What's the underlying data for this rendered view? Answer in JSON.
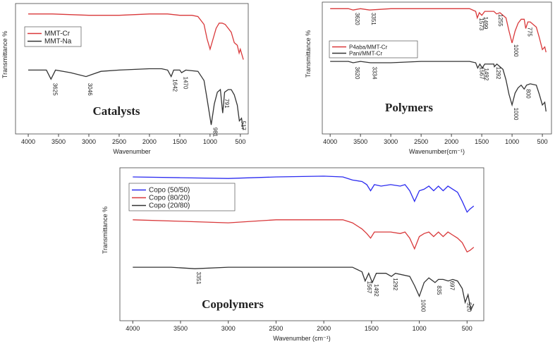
{
  "chart_data": [
    {
      "type": "line",
      "title": "Catalysts",
      "x_label": "Wavenumber",
      "y_label": "Transmittance %",
      "legend": "upper left",
      "xlim": [
        4210,
        370
      ],
      "ylim": [
        0,
        100
      ],
      "xticks": [
        4000,
        3500,
        3000,
        2500,
        2000,
        1500,
        1000,
        500
      ],
      "series": [
        {
          "name": "MMT-Cr",
          "color": "#d9383a",
          "x": [
            4000,
            3600,
            3000,
            2500,
            2000,
            1700,
            1500,
            1300,
            1200,
            1100,
            1050,
            1000,
            950,
            900,
            850,
            800,
            750,
            700,
            650,
            600,
            550,
            520,
            500,
            450
          ],
          "values": [
            92,
            92,
            91,
            91,
            92,
            92,
            91,
            91,
            90,
            84,
            73,
            65,
            73,
            81,
            85,
            85,
            84,
            81,
            78,
            70,
            68,
            62,
            65,
            57
          ]
        },
        {
          "name": "MMT-Na",
          "color": "#333333",
          "x": [
            4000,
            3700,
            3625,
            3550,
            3300,
            3046,
            2800,
            2500,
            2000,
            1800,
            1700,
            1642,
            1600,
            1500,
            1470,
            1400,
            1200,
            1100,
            1050,
            981,
            930,
            880,
            830,
            791,
            760,
            700,
            650,
            600,
            550,
            517,
            480,
            450
          ],
          "values": [
            49,
            49,
            42,
            49,
            47,
            44,
            48,
            49,
            50,
            50,
            49,
            44,
            49,
            49,
            47,
            49,
            48,
            41,
            27,
            7,
            23,
            32,
            34,
            16,
            32,
            34,
            34,
            30,
            22,
            10,
            12,
            3
          ]
        }
      ],
      "annotations": [
        {
          "text": "3625",
          "x": 3625,
          "y": 39
        },
        {
          "text": "3046",
          "x": 3046,
          "y": 39
        },
        {
          "text": "1642",
          "x": 1642,
          "y": 42
        },
        {
          "text": "1470",
          "x": 1470,
          "y": 44
        },
        {
          "text": "981",
          "x": 981,
          "y": 5
        },
        {
          "text": "791",
          "x": 791,
          "y": 27
        },
        {
          "text": "517",
          "x": 517,
          "y": 10
        }
      ]
    },
    {
      "type": "line",
      "title": "Polymers",
      "x_label": "Wavenumber(cm⁻¹)",
      "y_label": "Transmittance %",
      "legend": "upper left",
      "xlim": [
        4130,
        350
      ],
      "ylim": [
        0,
        100
      ],
      "xticks": [
        4000,
        3500,
        3000,
        2500,
        2000,
        1500,
        1000,
        500
      ],
      "series": [
        {
          "name": "P4aba/MMT-Cr",
          "color": "#d9383a",
          "x": [
            4000,
            3700,
            3620,
            3500,
            3351,
            3000,
            2500,
            2000,
            1700,
            1600,
            1573,
            1540,
            1499,
            1450,
            1300,
            1255,
            1200,
            1100,
            1050,
            1000,
            950,
            900,
            850,
            800,
            775,
            740,
            700,
            600,
            550,
            500,
            460,
            440
          ],
          "values": [
            95,
            95,
            94,
            95,
            94,
            95,
            95,
            95,
            95,
            93,
            88,
            92,
            90,
            93,
            93,
            91,
            92,
            88,
            78,
            69,
            78,
            84,
            87,
            87,
            80,
            85,
            85,
            81,
            73,
            64,
            66,
            62
          ]
        },
        {
          "name": "Pani/MMT-Cr",
          "color": "#333333",
          "x": [
            4000,
            3700,
            3620,
            3500,
            3334,
            3000,
            2500,
            2000,
            1700,
            1600,
            1567,
            1530,
            1492,
            1450,
            1300,
            1292,
            1250,
            1150,
            1100,
            1050,
            1000,
            950,
            900,
            850,
            800,
            760,
            700,
            600,
            550,
            500,
            460,
            440
          ],
          "values": [
            55,
            55,
            54,
            55,
            54,
            54,
            55,
            55,
            55,
            54,
            50,
            53,
            50,
            53,
            53,
            51,
            53,
            49,
            41,
            30,
            22,
            31,
            35,
            37,
            34,
            37,
            38,
            37,
            30,
            22,
            24,
            17
          ]
        }
      ],
      "annotations": [
        {
          "text": "3620",
          "x": 3620,
          "y": 92
        },
        {
          "text": "3351",
          "x": 3351,
          "y": 92
        },
        {
          "text": "1573",
          "x": 1573,
          "y": 88
        },
        {
          "text": "1499",
          "x": 1499,
          "y": 89
        },
        {
          "text": "1255",
          "x": 1255,
          "y": 91
        },
        {
          "text": "1000",
          "x": 1000,
          "y": 68
        },
        {
          "text": "775",
          "x": 775,
          "y": 81
        },
        {
          "text": "3620",
          "x": 3620,
          "y": 51
        },
        {
          "text": "3334",
          "x": 3334,
          "y": 51
        },
        {
          "text": "1567",
          "x": 1567,
          "y": 51
        },
        {
          "text": "1492",
          "x": 1492,
          "y": 50
        },
        {
          "text": "1292",
          "x": 1292,
          "y": 51
        },
        {
          "text": "1000",
          "x": 1000,
          "y": 20
        },
        {
          "text": "800",
          "x": 800,
          "y": 34
        }
      ]
    },
    {
      "type": "line",
      "title": "Copolymers",
      "x_label": "Wavenumber (cm⁻¹)",
      "y_label": "Transmittance %",
      "legend": "upper left",
      "xlim": [
        4135,
        325
      ],
      "ylim": [
        0,
        100
      ],
      "xticks": [
        4000,
        3500,
        3000,
        2500,
        2000,
        1500,
        1000,
        500
      ],
      "series": [
        {
          "name": "Copo (50/50)",
          "color": "#2b2bf0",
          "x": [
            4000,
            3500,
            3000,
            2500,
            2000,
            1800,
            1700,
            1600,
            1550,
            1510,
            1470,
            1400,
            1300,
            1200,
            1150,
            1100,
            1050,
            1000,
            950,
            900,
            850,
            800,
            750,
            700,
            650,
            600,
            550,
            500,
            470,
            430
          ],
          "values": [
            94,
            93.5,
            93,
            94,
            94.5,
            94,
            92,
            91,
            89,
            85,
            89,
            88,
            89,
            88,
            89,
            85,
            78,
            85,
            86,
            88,
            85,
            88,
            85,
            88,
            86,
            84,
            78,
            71,
            73,
            75
          ]
        },
        {
          "name": "Copo (80/20)",
          "color": "#d9383a",
          "x": [
            4000,
            3500,
            3000,
            2500,
            2000,
            1800,
            1700,
            1600,
            1550,
            1510,
            1470,
            1400,
            1300,
            1200,
            1150,
            1100,
            1050,
            1000,
            950,
            900,
            850,
            800,
            750,
            700,
            650,
            600,
            550,
            500,
            470,
            430
          ],
          "values": [
            66,
            65,
            64,
            66,
            66,
            66,
            64,
            60,
            57,
            54,
            58,
            58,
            58,
            57,
            58,
            54,
            47,
            55,
            57,
            58,
            55,
            58,
            55,
            58,
            56,
            54,
            51,
            45,
            46,
            48
          ]
        },
        {
          "name": "Copo (20/80)",
          "color": "#333333",
          "x": [
            4000,
            3600,
            3351,
            3000,
            2500,
            2000,
            1800,
            1700,
            1600,
            1567,
            1530,
            1492,
            1450,
            1350,
            1292,
            1250,
            1100,
            1050,
            1000,
            950,
            900,
            835,
            800,
            750,
            697,
            650,
            600,
            550,
            520,
            490,
            460,
            430
          ],
          "values": [
            35,
            35,
            34,
            35,
            35,
            35,
            35,
            35,
            32,
            26,
            31,
            25,
            31,
            31,
            29,
            31,
            29,
            23,
            16,
            25,
            28,
            25,
            27,
            27,
            26,
            27,
            26,
            21,
            12,
            17,
            7,
            11
          ]
        }
      ],
      "annotations": [
        {
          "text": "3351",
          "x": 3351,
          "y": 32
        },
        {
          "text": "1567",
          "x": 1567,
          "y": 26
        },
        {
          "text": "1492",
          "x": 1492,
          "y": 24
        },
        {
          "text": "1292",
          "x": 1292,
          "y": 28
        },
        {
          "text": "1000",
          "x": 1000,
          "y": 14
        },
        {
          "text": "835",
          "x": 835,
          "y": 23
        },
        {
          "text": "697",
          "x": 697,
          "y": 26
        },
        {
          "text": "520",
          "x": 520,
          "y": 12
        }
      ]
    }
  ]
}
